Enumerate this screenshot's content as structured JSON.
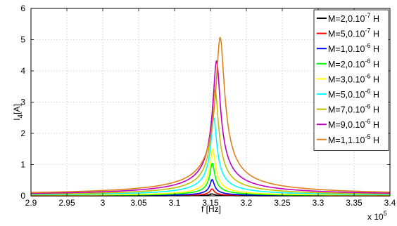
{
  "chart_data": {
    "type": "line",
    "title": "",
    "xlabel": "f [Hz]",
    "ylabel": "I4 [A]",
    "ylabel_main": "I",
    "ylabel_sub": "4",
    "ylabel_unit": "[A]",
    "x_multiplier": "x 10",
    "x_multiplier_exp": "5",
    "xlim": [
      2.9,
      3.4
    ],
    "ylim": [
      0,
      6
    ],
    "x_unit_scale": 100000,
    "xticks": [
      "2.9",
      "2.95",
      "3",
      "3.05",
      "3.1",
      "3.15",
      "3.2",
      "3.25",
      "3.3",
      "3.35",
      "3.4"
    ],
    "yticks": [
      "0",
      "1",
      "2",
      "3",
      "4",
      "5",
      "6"
    ],
    "grid": true,
    "legend_position": "top-right",
    "series": [
      {
        "name_main": "M=2,0.10",
        "name_exp": "-7",
        "name_unit": " H",
        "color": "#000000",
        "peak_x": 3.1523,
        "peak_y": 0.06,
        "width": 0.0027
      },
      {
        "name_main": "M=5,0.10",
        "name_exp": "-7",
        "name_unit": " H",
        "color": "#ff0000",
        "peak_x": 3.1523,
        "peak_y": 0.22,
        "width": 0.0027
      },
      {
        "name_main": "M=1,0.10",
        "name_exp": "-6",
        "name_unit": " H",
        "color": "#0000ff",
        "peak_x": 3.1524,
        "peak_y": 0.52,
        "width": 0.0028
      },
      {
        "name_main": "M=2,0.10",
        "name_exp": "-6",
        "name_unit": " H",
        "color": "#00ff00",
        "peak_x": 3.1526,
        "peak_y": 1.05,
        "width": 0.003
      },
      {
        "name_main": "M=3,0.10",
        "name_exp": "-6",
        "name_unit": " H",
        "color": "#ffff00",
        "peak_x": 3.1532,
        "peak_y": 1.5,
        "width": 0.0033
      },
      {
        "name_main": "M=5,0.10",
        "name_exp": "-6",
        "name_unit": " H",
        "color": "#00ffff",
        "peak_x": 3.1546,
        "peak_y": 2.5,
        "width": 0.0038
      },
      {
        "name_main": "M=7,0.10",
        "name_exp": "-6",
        "name_unit": " H",
        "color": "#bfbf00",
        "peak_x": 3.1565,
        "peak_y": 3.4,
        "width": 0.0043
      },
      {
        "name_main": "M=9,0.10",
        "name_exp": "-6",
        "name_unit": " H",
        "color": "#bf00bf",
        "peak_x": 3.1585,
        "peak_y": 4.32,
        "width": 0.0048
      },
      {
        "name_main": "M=1,1.10",
        "name_exp": "-5",
        "name_unit": " H",
        "color": "#e0801a",
        "peak_x": 3.1635,
        "peak_y": 5.07,
        "width": 0.0055
      }
    ]
  }
}
